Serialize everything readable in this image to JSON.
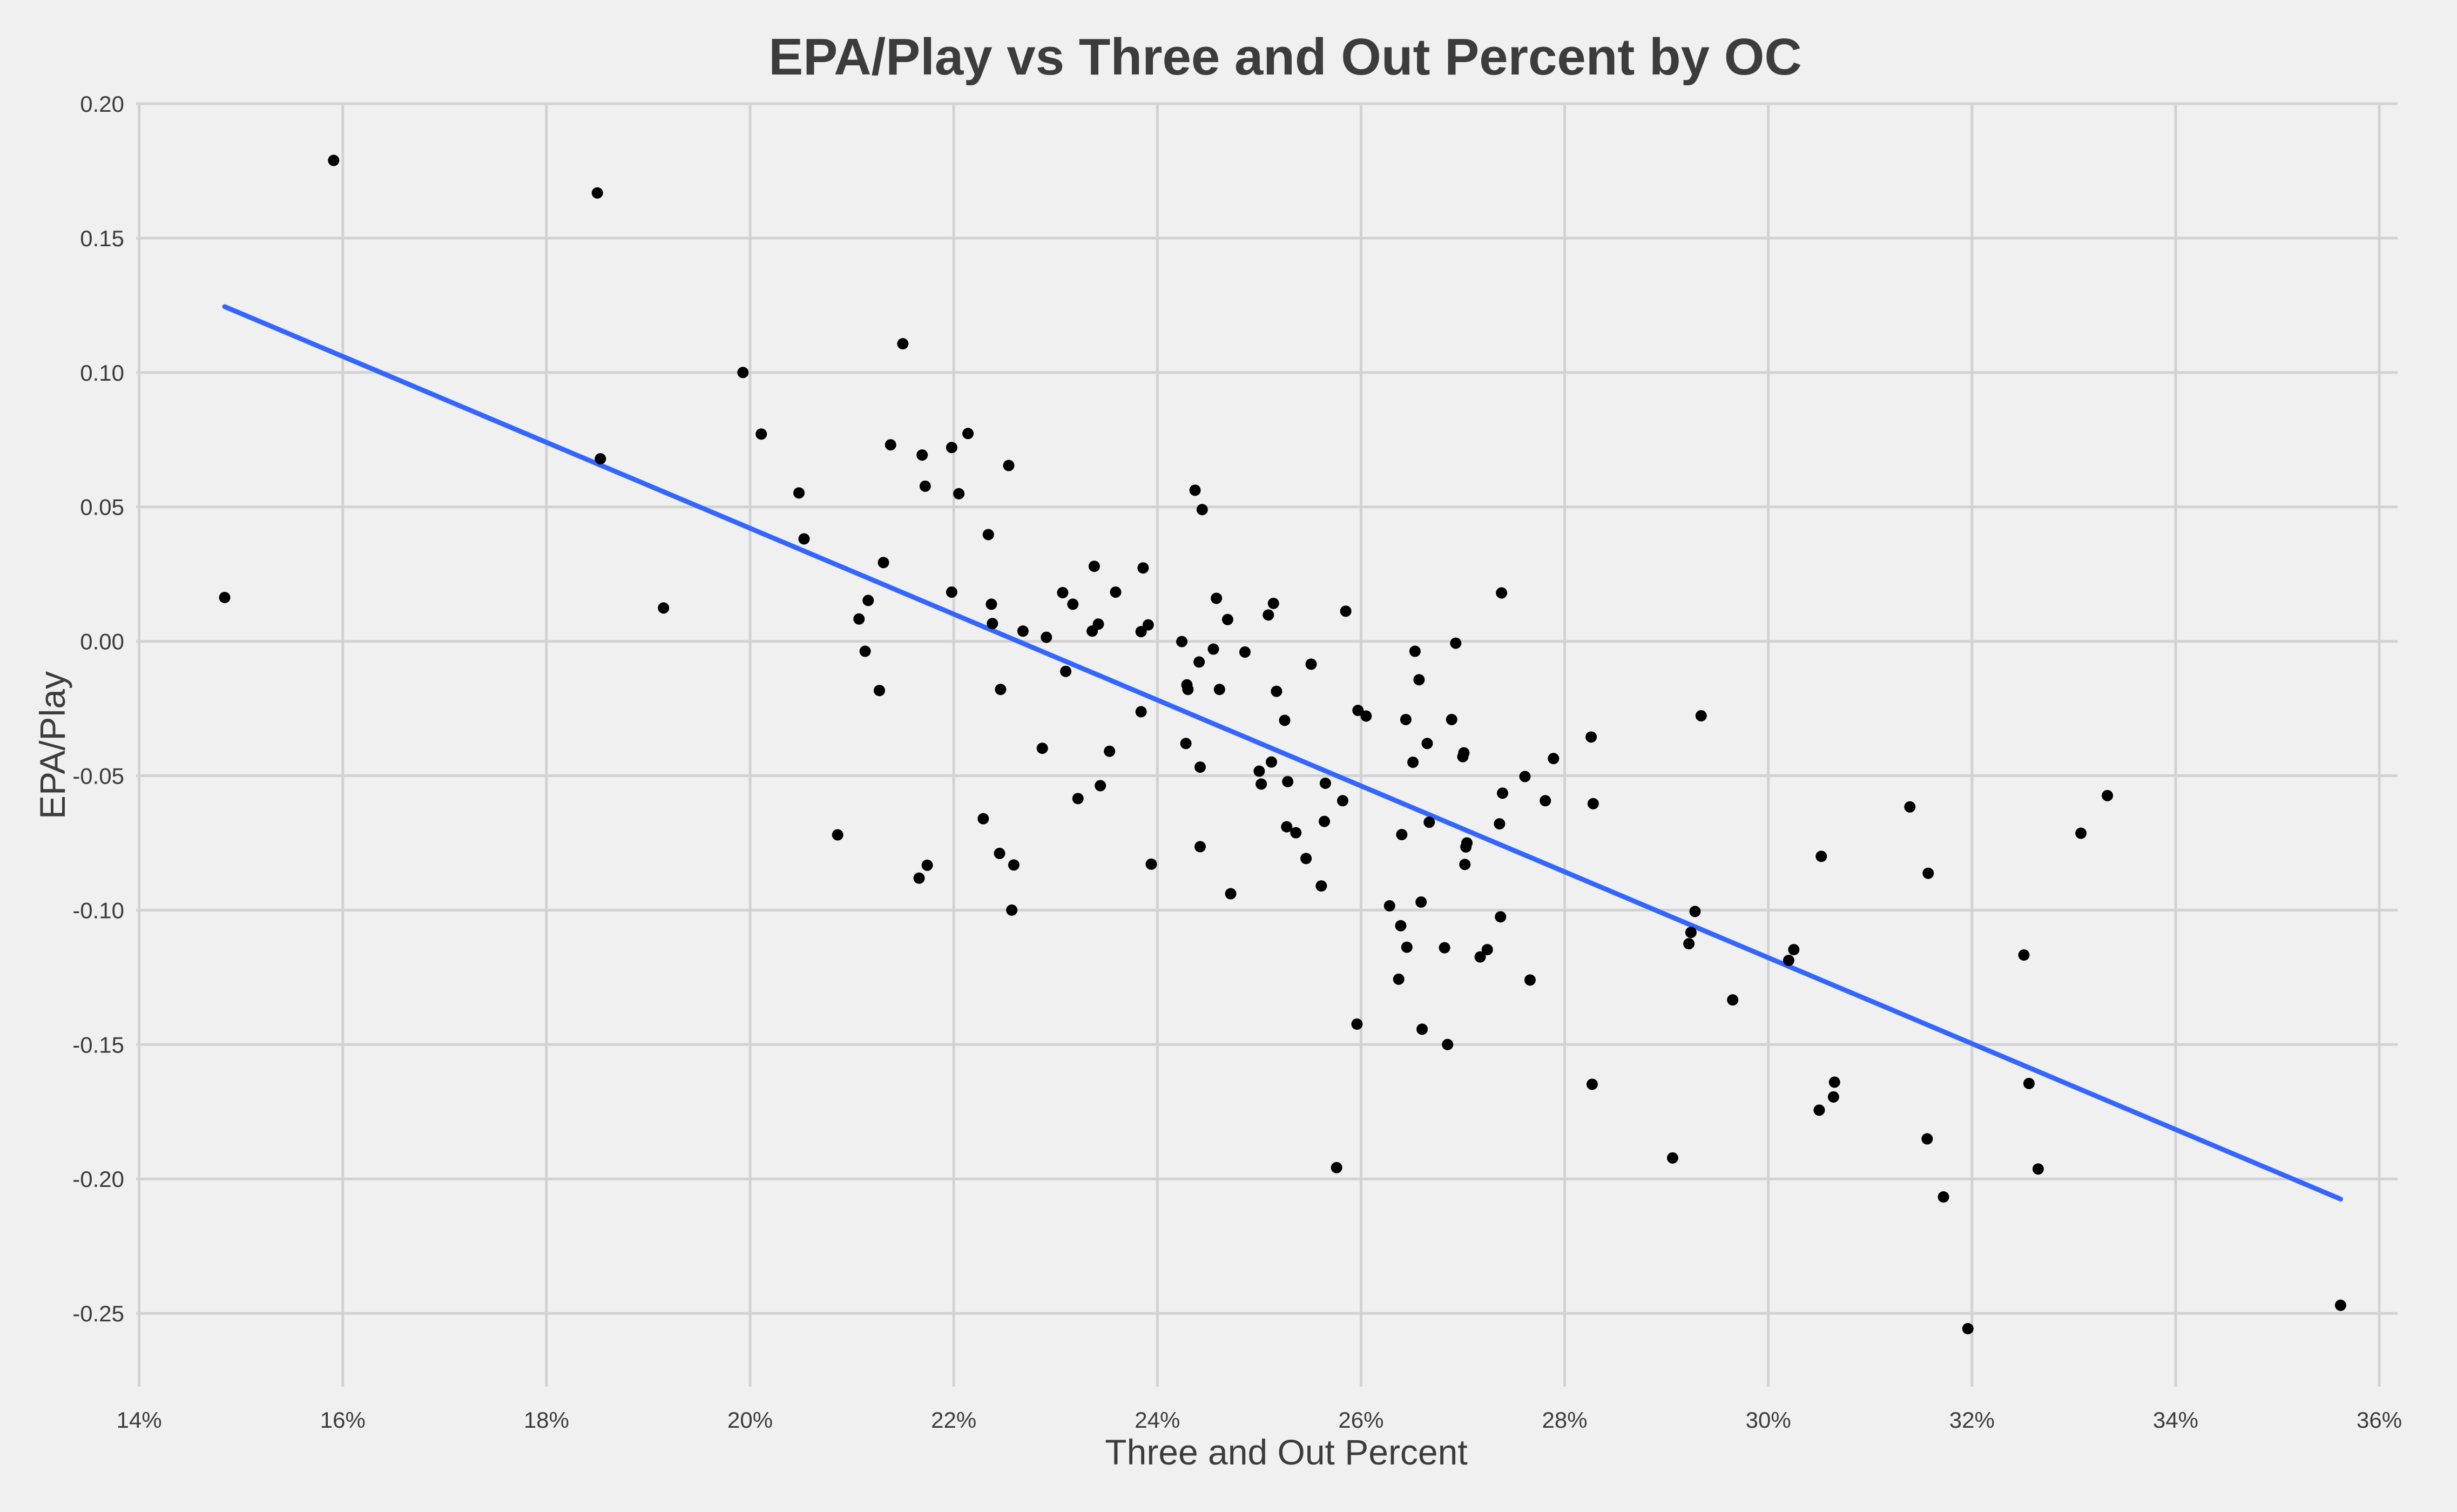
{
  "chart_data": {
    "type": "scatter",
    "title": "EPA/Play vs Three and Out Percent by OC",
    "xlabel": "Three and Out Percent",
    "ylabel": "EPA/Play",
    "xlim": [
      0.1397,
      0.3618
    ],
    "ylim": [
      -0.2773,
      0.2
    ],
    "x_ticks": [
      0.14,
      0.16,
      0.18,
      0.2,
      0.22,
      0.24,
      0.26,
      0.28,
      0.3,
      0.32,
      0.34,
      0.36
    ],
    "x_tick_labels": [
      "14%",
      "16%",
      "18%",
      "20%",
      "22%",
      "24%",
      "26%",
      "28%",
      "30%",
      "32%",
      "34%",
      "36%"
    ],
    "y_ticks": [
      0.2,
      0.15,
      0.1,
      0.05,
      0.0,
      -0.05,
      -0.1,
      -0.15,
      -0.2,
      -0.25
    ],
    "y_tick_labels": [
      "0.20",
      "0.15",
      "0.10",
      "0.05",
      "0.00",
      "-0.05",
      "-0.10",
      "-0.15",
      "-0.20",
      "-0.25"
    ],
    "grid": true,
    "point_color": "#000000",
    "trend_color": "#3366ff",
    "trend_line": {
      "x": [
        0.1484,
        0.3562
      ],
      "y": [
        0.1245,
        -0.2075
      ]
    },
    "points": [
      [
        0.1484,
        0.0163
      ],
      [
        0.1591,
        0.1789
      ],
      [
        0.185,
        0.1668
      ],
      [
        0.1853,
        0.0679
      ],
      [
        0.1915,
        0.0124
      ],
      [
        0.1993,
        0.1
      ],
      [
        0.2011,
        0.0771
      ],
      [
        0.2048,
        0.0552
      ],
      [
        0.2053,
        0.0381
      ],
      [
        0.2086,
        -0.072
      ],
      [
        0.2107,
        0.0083
      ],
      [
        0.2113,
        -0.0037
      ],
      [
        0.2116,
        0.0152
      ],
      [
        0.2127,
        -0.0183
      ],
      [
        0.2131,
        0.0293
      ],
      [
        0.2138,
        0.0731
      ],
      [
        0.215,
        0.1107
      ],
      [
        0.2166,
        -0.0881
      ],
      [
        0.2169,
        0.0693
      ],
      [
        0.2172,
        0.0577
      ],
      [
        0.2174,
        -0.0833
      ],
      [
        0.2198,
        0.0183
      ],
      [
        0.2198,
        0.0721
      ],
      [
        0.2205,
        0.0549
      ],
      [
        0.2214,
        0.0773
      ],
      [
        0.2229,
        -0.066
      ],
      [
        0.2234,
        0.0397
      ],
      [
        0.2237,
        0.0138
      ],
      [
        0.2238,
        0.0066
      ],
      [
        0.2245,
        -0.0789
      ],
      [
        0.2246,
        -0.0179
      ],
      [
        0.2254,
        0.0654
      ],
      [
        0.2257,
        -0.1
      ],
      [
        0.2259,
        -0.0832
      ],
      [
        0.2268,
        0.0038
      ],
      [
        0.2287,
        -0.0398
      ],
      [
        0.2291,
        0.0015
      ],
      [
        0.2307,
        0.0181
      ],
      [
        0.231,
        -0.0112
      ],
      [
        0.2317,
        0.0138
      ],
      [
        0.2322,
        -0.0585
      ],
      [
        0.2336,
        0.0038
      ],
      [
        0.2338,
        0.0279
      ],
      [
        0.2342,
        0.0064
      ],
      [
        0.2344,
        -0.0537
      ],
      [
        0.2353,
        -0.0409
      ],
      [
        0.2359,
        0.0183
      ],
      [
        0.2384,
        -0.0262
      ],
      [
        0.2384,
        0.0036
      ],
      [
        0.2386,
        0.0273
      ],
      [
        0.2391,
        0.0061
      ],
      [
        0.2394,
        -0.0829
      ],
      [
        0.2424,
        -0.0001
      ],
      [
        0.2428,
        -0.038
      ],
      [
        0.2429,
        -0.0162
      ],
      [
        0.243,
        -0.0179
      ],
      [
        0.2437,
        0.0562
      ],
      [
        0.2441,
        -0.0077
      ],
      [
        0.2442,
        -0.0468
      ],
      [
        0.2442,
        -0.0764
      ],
      [
        0.2444,
        0.049
      ],
      [
        0.2455,
        -0.0029
      ],
      [
        0.2458,
        0.016
      ],
      [
        0.2461,
        -0.0179
      ],
      [
        0.2469,
        0.0081
      ],
      [
        0.2472,
        -0.0939
      ],
      [
        0.2486,
        -0.004
      ],
      [
        0.25,
        -0.0483
      ],
      [
        0.2502,
        -0.0531
      ],
      [
        0.2509,
        0.0098
      ],
      [
        0.2512,
        -0.0449
      ],
      [
        0.2514,
        0.0141
      ],
      [
        0.2517,
        -0.0186
      ],
      [
        0.2525,
        -0.0294
      ],
      [
        0.2527,
        -0.069
      ],
      [
        0.2528,
        -0.0522
      ],
      [
        0.2536,
        -0.0712
      ],
      [
        0.2546,
        -0.0808
      ],
      [
        0.2551,
        -0.0085
      ],
      [
        0.2561,
        -0.091
      ],
      [
        0.2564,
        -0.067
      ],
      [
        0.2565,
        -0.0528
      ],
      [
        0.2576,
        -0.1958
      ],
      [
        0.2582,
        -0.0593
      ],
      [
        0.2585,
        0.0112
      ],
      [
        0.2596,
        -0.1424
      ],
      [
        0.2597,
        -0.0257
      ],
      [
        0.2605,
        -0.0278
      ],
      [
        0.2628,
        -0.0984
      ],
      [
        0.2637,
        -0.1257
      ],
      [
        0.2639,
        -0.1058
      ],
      [
        0.264,
        -0.0719
      ],
      [
        0.2644,
        -0.0291
      ],
      [
        0.2645,
        -0.1138
      ],
      [
        0.2651,
        -0.045
      ],
      [
        0.2653,
        -0.0037
      ],
      [
        0.2657,
        -0.0143
      ],
      [
        0.2659,
        -0.097
      ],
      [
        0.266,
        -0.1443
      ],
      [
        0.2665,
        -0.038
      ],
      [
        0.2667,
        -0.0673
      ],
      [
        0.2682,
        -0.114
      ],
      [
        0.2685,
        -0.15
      ],
      [
        0.2689,
        -0.0291
      ],
      [
        0.2693,
        -0.0007
      ],
      [
        0.27,
        -0.0429
      ],
      [
        0.2701,
        -0.0415
      ],
      [
        0.2702,
        -0.083
      ],
      [
        0.2703,
        -0.0765
      ],
      [
        0.2704,
        -0.075
      ],
      [
        0.2717,
        -0.1174
      ],
      [
        0.2724,
        -0.1147
      ],
      [
        0.2736,
        -0.0679
      ],
      [
        0.2737,
        -0.1025
      ],
      [
        0.2738,
        0.018
      ],
      [
        0.2739,
        -0.0565
      ],
      [
        0.2761,
        -0.0503
      ],
      [
        0.2766,
        -0.126
      ],
      [
        0.2781,
        -0.0593
      ],
      [
        0.2789,
        -0.0436
      ],
      [
        0.2826,
        -0.0356
      ],
      [
        0.2827,
        -0.1648
      ],
      [
        0.2828,
        -0.0604
      ],
      [
        0.2906,
        -0.1922
      ],
      [
        0.2922,
        -0.1125
      ],
      [
        0.2924,
        -0.1083
      ],
      [
        0.2928,
        -0.1005
      ],
      [
        0.2934,
        -0.0277
      ],
      [
        0.2965,
        -0.1334
      ],
      [
        0.302,
        -0.1187
      ],
      [
        0.3025,
        -0.1147
      ],
      [
        0.305,
        -0.1744
      ],
      [
        0.3052,
        -0.08
      ],
      [
        0.3064,
        -0.1695
      ],
      [
        0.3065,
        -0.164
      ],
      [
        0.3139,
        -0.0616
      ],
      [
        0.3156,
        -0.1851
      ],
      [
        0.3157,
        -0.0863
      ],
      [
        0.3172,
        -0.2067
      ],
      [
        0.3196,
        -0.2557
      ],
      [
        0.3251,
        -0.1167
      ],
      [
        0.3256,
        -0.1645
      ],
      [
        0.3265,
        -0.1963
      ],
      [
        0.3307,
        -0.0714
      ],
      [
        0.3333,
        -0.0574
      ],
      [
        0.3562,
        -0.247
      ]
    ]
  }
}
